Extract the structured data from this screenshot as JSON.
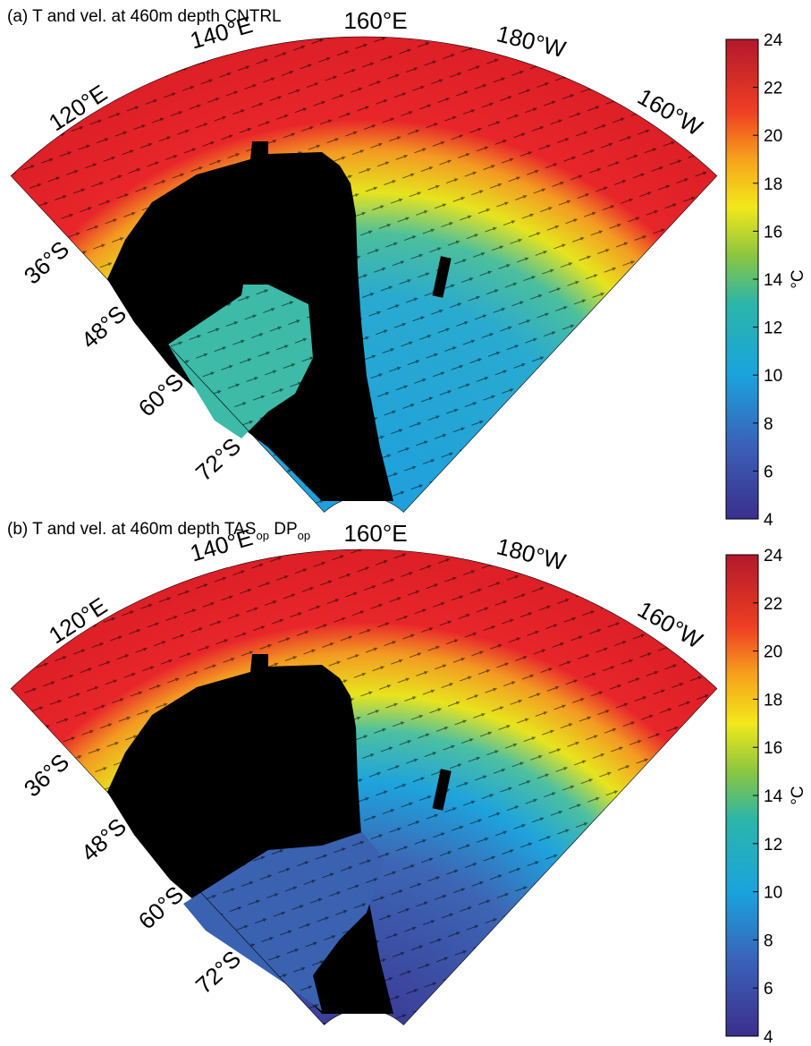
{
  "panels": [
    {
      "title": [
        "(a) T and vel. at 460m depth CNTRL"
      ],
      "lon_labels": [
        "120°E",
        "140°E",
        "160°E",
        "180°W",
        "160°W"
      ],
      "lat_labels": [
        "36°S",
        "48°S",
        "60°S",
        "72°S"
      ],
      "colorbar": {
        "lim": [
          4,
          24
        ],
        "ticks": [
          4,
          6,
          8,
          10,
          12,
          14,
          16,
          18,
          20,
          22,
          24
        ],
        "unit": "°C"
      }
    },
    {
      "title": [
        "(b) T and vel. at 460m depth TAS",
        "op",
        " DP",
        "op"
      ],
      "lon_labels": [
        "120°E",
        "140°E",
        "160°E",
        "180°W",
        "160°W"
      ],
      "lat_labels": [
        "36°S",
        "48°S",
        "60°S",
        "72°S"
      ],
      "colorbar": {
        "lim": [
          4,
          24
        ],
        "ticks": [
          4,
          6,
          8,
          10,
          12,
          14,
          16,
          18,
          20,
          22,
          24
        ],
        "unit": "°C"
      }
    }
  ]
}
